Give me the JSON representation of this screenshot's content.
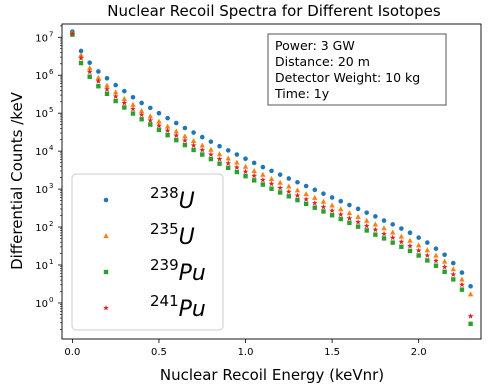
{
  "chart_data": {
    "type": "scatter",
    "title": "Nuclear Recoil Spectra for Different Isotopes",
    "xlabel": "Nuclear Recoil Energy (keVnr)",
    "ylabel": "Differential Counts /keV",
    "xlim": [
      -0.06,
      2.36
    ],
    "ylim_log10": [
      -0.95,
      7.35
    ],
    "y_scale": "log",
    "x_ticks": [
      {
        "value": 0.0,
        "label": "0.0"
      },
      {
        "value": 0.5,
        "label": "0.5"
      },
      {
        "value": 1.0,
        "label": "1.0"
      },
      {
        "value": 1.5,
        "label": "1.5"
      },
      {
        "value": 2.0,
        "label": "2.0"
      }
    ],
    "y_ticks": [
      {
        "exp": 0,
        "label": "10",
        "sup": "0"
      },
      {
        "exp": 1,
        "label": "10",
        "sup": "1"
      },
      {
        "exp": 2,
        "label": "10",
        "sup": "2"
      },
      {
        "exp": 3,
        "label": "10",
        "sup": "3"
      },
      {
        "exp": 4,
        "label": "10",
        "sup": "4"
      },
      {
        "exp": 5,
        "label": "10",
        "sup": "5"
      },
      {
        "exp": 6,
        "label": "10",
        "sup": "6"
      },
      {
        "exp": 7,
        "label": "10",
        "sup": "7"
      }
    ],
    "info_box": [
      "Power: 3 GW",
      "Distance: 20 m",
      "Detector Weight: 10 kg",
      "Time: 1y"
    ],
    "legend_position": "lower-left",
    "series": [
      {
        "mass": "238",
        "symbol": "U",
        "marker": "circle",
        "color": "#1f77b4",
        "x": [
          0.0,
          0.05,
          0.1,
          0.15,
          0.2,
          0.25,
          0.3,
          0.35,
          0.4,
          0.45,
          0.5,
          0.55,
          0.6,
          0.65,
          0.7,
          0.75,
          0.8,
          0.85,
          0.9,
          0.95,
          1.0,
          1.05,
          1.1,
          1.15,
          1.2,
          1.25,
          1.3,
          1.35,
          1.4,
          1.45,
          1.5,
          1.55,
          1.6,
          1.65,
          1.7,
          1.75,
          1.8,
          1.85,
          1.9,
          1.95,
          2.0,
          2.05,
          2.1,
          2.15,
          2.2,
          2.25,
          2.3
        ],
        "log10y": [
          7.15,
          6.64,
          6.33,
          6.1,
          5.92,
          5.74,
          5.58,
          5.42,
          5.27,
          5.14,
          5.0,
          4.87,
          4.74,
          4.61,
          4.49,
          4.37,
          4.25,
          4.13,
          4.02,
          3.91,
          3.8,
          3.69,
          3.58,
          3.48,
          3.38,
          3.28,
          3.18,
          3.08,
          2.98,
          2.88,
          2.78,
          2.68,
          2.58,
          2.48,
          2.38,
          2.28,
          2.17,
          2.07,
          1.96,
          1.85,
          1.72,
          1.59,
          1.43,
          1.27,
          1.05,
          0.8,
          0.44
        ]
      },
      {
        "mass": "235",
        "symbol": "U",
        "marker": "triangle",
        "color": "#ff7f0e",
        "x": [
          0.0,
          0.05,
          0.1,
          0.15,
          0.2,
          0.25,
          0.3,
          0.35,
          0.4,
          0.45,
          0.5,
          0.55,
          0.6,
          0.65,
          0.7,
          0.75,
          0.8,
          0.85,
          0.9,
          0.95,
          1.0,
          1.05,
          1.1,
          1.15,
          1.2,
          1.25,
          1.3,
          1.35,
          1.4,
          1.45,
          1.5,
          1.55,
          1.6,
          1.65,
          1.7,
          1.75,
          1.8,
          1.85,
          1.9,
          1.95,
          2.0,
          2.05,
          2.1,
          2.15,
          2.2,
          2.25,
          2.3
        ],
        "log10y": [
          7.12,
          6.53,
          6.19,
          5.93,
          5.73,
          5.55,
          5.38,
          5.22,
          5.06,
          4.92,
          4.78,
          4.65,
          4.52,
          4.39,
          4.27,
          4.15,
          4.04,
          3.92,
          3.81,
          3.7,
          3.59,
          3.48,
          3.38,
          3.27,
          3.17,
          3.07,
          2.97,
          2.87,
          2.77,
          2.67,
          2.57,
          2.47,
          2.37,
          2.27,
          2.17,
          2.07,
          1.97,
          1.86,
          1.75,
          1.64,
          1.52,
          1.39,
          1.25,
          1.09,
          0.89,
          0.62,
          0.23
        ]
      },
      {
        "mass": "239",
        "symbol": "Pu",
        "marker": "square",
        "color": "#2ca02c",
        "x": [
          0.0,
          0.05,
          0.1,
          0.15,
          0.2,
          0.25,
          0.3,
          0.35,
          0.4,
          0.45,
          0.5,
          0.55,
          0.6,
          0.65,
          0.7,
          0.75,
          0.8,
          0.85,
          0.9,
          0.95,
          1.0,
          1.05,
          1.1,
          1.15,
          1.2,
          1.25,
          1.3,
          1.35,
          1.4,
          1.45,
          1.5,
          1.55,
          1.6,
          1.65,
          1.7,
          1.75,
          1.8,
          1.85,
          1.9,
          1.95,
          2.0,
          2.05,
          2.1,
          2.15,
          2.2,
          2.25,
          2.3
        ],
        "log10y": [
          7.07,
          6.32,
          5.96,
          5.71,
          5.51,
          5.32,
          5.15,
          4.99,
          4.84,
          4.7,
          4.56,
          4.42,
          4.29,
          4.16,
          4.03,
          3.91,
          3.79,
          3.67,
          3.56,
          3.45,
          3.34,
          3.23,
          3.12,
          3.01,
          2.91,
          2.81,
          2.71,
          2.61,
          2.51,
          2.41,
          2.31,
          2.21,
          2.11,
          2.01,
          1.91,
          1.8,
          1.7,
          1.59,
          1.48,
          1.37,
          1.25,
          1.12,
          0.98,
          0.82,
          0.62,
          0.35,
          -0.55
        ]
      },
      {
        "mass": "241",
        "symbol": "Pu",
        "marker": "star",
        "color": "#d62728",
        "x": [
          0.0,
          0.05,
          0.1,
          0.15,
          0.2,
          0.25,
          0.3,
          0.35,
          0.4,
          0.45,
          0.5,
          0.55,
          0.6,
          0.65,
          0.7,
          0.75,
          0.8,
          0.85,
          0.9,
          0.95,
          1.0,
          1.05,
          1.1,
          1.15,
          1.2,
          1.25,
          1.3,
          1.35,
          1.4,
          1.45,
          1.5,
          1.55,
          1.6,
          1.65,
          1.7,
          1.75,
          1.8,
          1.85,
          1.9,
          1.95,
          2.0,
          2.05,
          2.1,
          2.15,
          2.2,
          2.25,
          2.3
        ],
        "log10y": [
          7.09,
          6.45,
          6.09,
          5.84,
          5.63,
          5.44,
          5.27,
          5.11,
          4.96,
          4.81,
          4.67,
          4.54,
          4.41,
          4.28,
          4.15,
          4.03,
          3.91,
          3.79,
          3.68,
          3.57,
          3.46,
          3.35,
          3.24,
          3.14,
          3.03,
          2.93,
          2.83,
          2.73,
          2.63,
          2.53,
          2.43,
          2.33,
          2.23,
          2.13,
          2.03,
          1.93,
          1.82,
          1.72,
          1.61,
          1.5,
          1.38,
          1.25,
          1.11,
          0.95,
          0.75,
          0.48,
          -0.35
        ]
      }
    ]
  }
}
